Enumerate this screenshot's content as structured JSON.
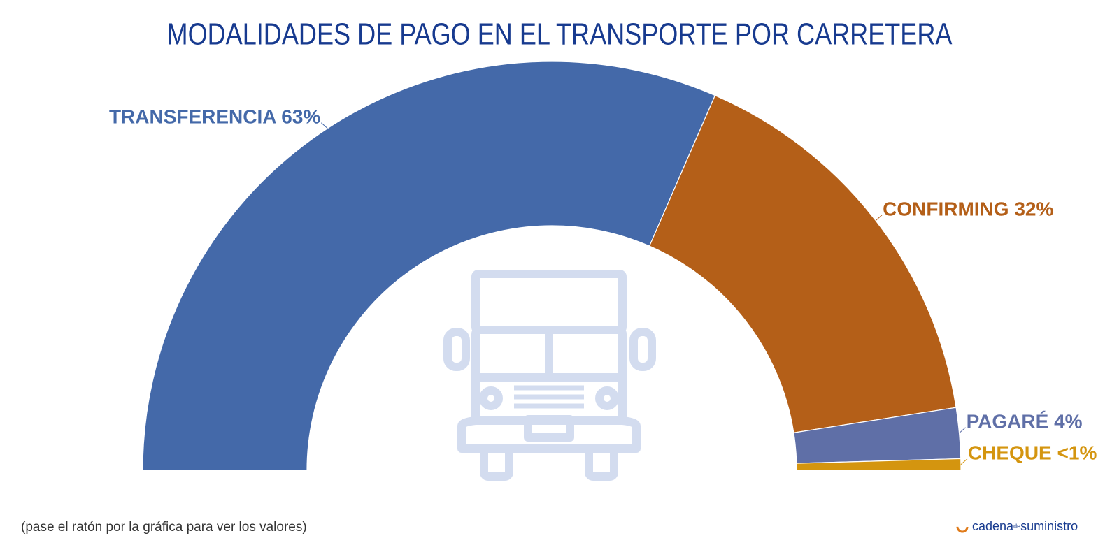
{
  "chart_data": {
    "type": "donut",
    "title": "MODALIDADES DE PAGO EN EL TRANSPORTE POR CARRETERA",
    "categories": [
      "TRANSFERENCIA",
      "CONFIRMING",
      "PAGARÉ",
      "CHEQUE"
    ],
    "values": [
      63,
      32,
      4,
      0.9
    ],
    "value_labels": [
      "63%",
      "32%",
      "4%",
      "<1%"
    ],
    "colors": [
      "#4469a9",
      "#b45f18",
      "#5f6fa7",
      "#d4950f"
    ],
    "note": "(pase el ratón por la gráfica para ver los valores)",
    "logo": [
      "cadena",
      "de",
      "suministro"
    ]
  }
}
